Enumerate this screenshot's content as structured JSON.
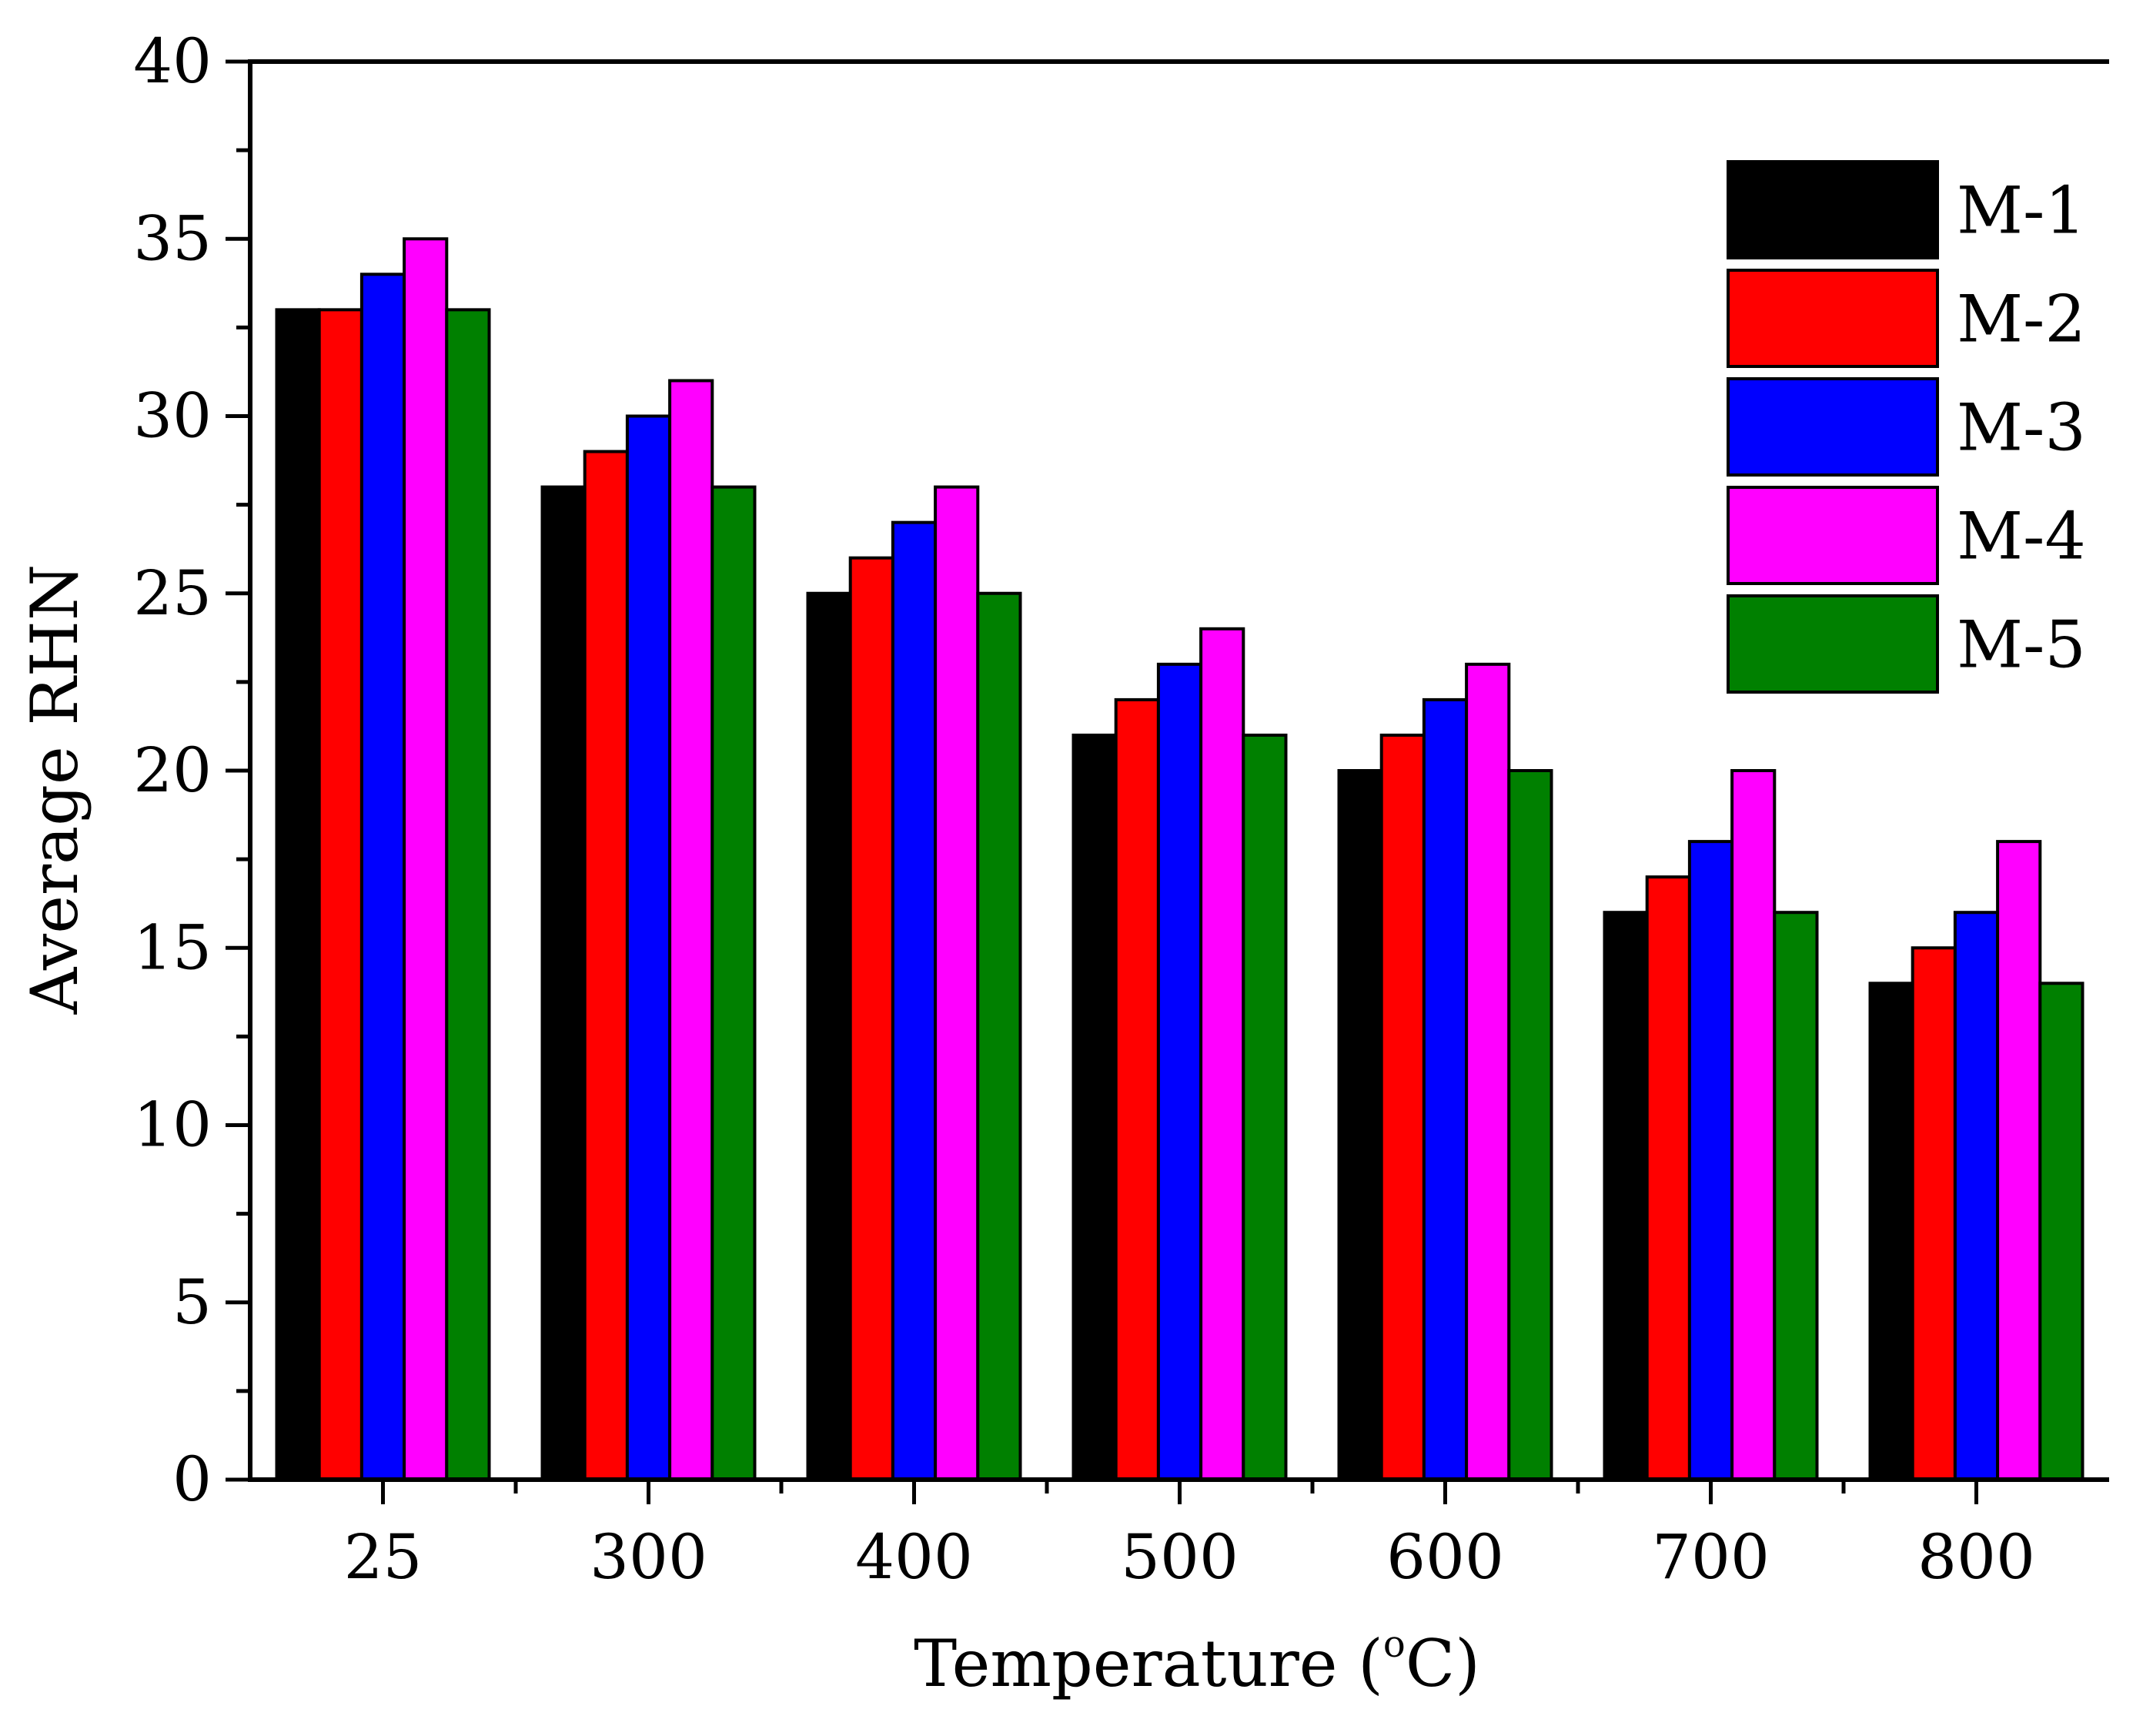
{
  "chart_data": {
    "type": "bar",
    "title": "",
    "xlabel_main": "Temperature (",
    "xlabel_degree": "o",
    "xlabel_unit": "C)",
    "ylabel": "Average RHN",
    "ylim": [
      0,
      40
    ],
    "yticks": [
      0,
      5,
      10,
      15,
      20,
      25,
      30,
      35,
      40
    ],
    "ytick_labels": [
      "0",
      "5",
      "10",
      "15",
      "20",
      "25",
      "30",
      "35",
      "40"
    ],
    "categories": [
      "25",
      "300",
      "400",
      "500",
      "600",
      "700",
      "800"
    ],
    "legend_position": "top-right",
    "grid": false,
    "series": [
      {
        "name": "M-1",
        "color": "#000000",
        "values": [
          33,
          28,
          25,
          21,
          20,
          16,
          14
        ]
      },
      {
        "name": "M-2",
        "color": "#ff0000",
        "values": [
          33,
          29,
          26,
          22,
          21,
          17,
          15
        ]
      },
      {
        "name": "M-3",
        "color": "#0000ff",
        "values": [
          34,
          30,
          27,
          23,
          22,
          18,
          16
        ]
      },
      {
        "name": "M-4",
        "color": "#ff00ff",
        "values": [
          35,
          31,
          28,
          24,
          23,
          20,
          18
        ]
      },
      {
        "name": "M-5",
        "color": "#008000",
        "values": [
          33,
          28,
          25,
          21,
          20,
          16,
          14
        ]
      }
    ]
  }
}
